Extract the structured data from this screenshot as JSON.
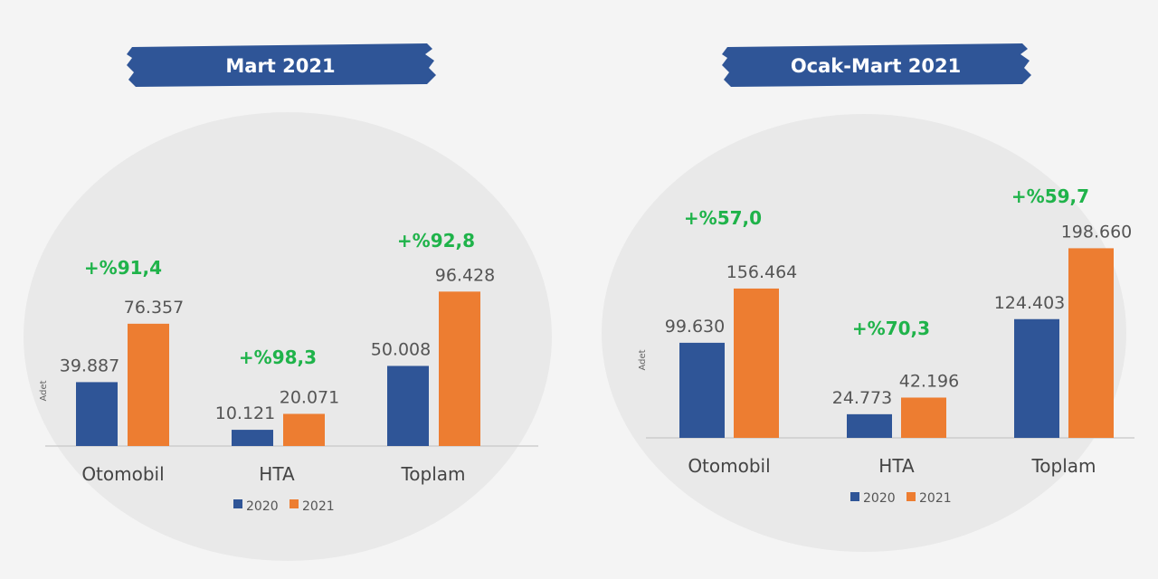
{
  "colors": {
    "s2020": "#2f5597",
    "s2021": "#ed7d31",
    "banner": "#2f5597",
    "growth": "#1fb34a",
    "panel": "#e9e9e9"
  },
  "chart_data": [
    {
      "type": "bar",
      "title": "Mart 2021",
      "ylabel": "Adet",
      "categories": [
        "Otomobil",
        "HTA",
        "Toplam"
      ],
      "series": [
        {
          "name": "2020",
          "values": [
            39887,
            10121,
            50008
          ],
          "labels": [
            "39.887",
            "10.121",
            "50.008"
          ]
        },
        {
          "name": "2021",
          "values": [
            76357,
            20071,
            96428
          ],
          "labels": [
            "76.357",
            "20.071",
            "96.428"
          ]
        }
      ],
      "annotations": [
        "+%91,4",
        "+%98,3",
        "+%92,8"
      ],
      "legend": [
        "2020",
        "2021"
      ],
      "ylim": [
        0,
        120000
      ]
    },
    {
      "type": "bar",
      "title": "Ocak-Mart 2021",
      "ylabel": "Adet",
      "categories": [
        "Otomobil",
        "HTA",
        "Toplam"
      ],
      "series": [
        {
          "name": "2020",
          "values": [
            99630,
            24773,
            124403
          ],
          "labels": [
            "99.630",
            "24.773",
            "124.403"
          ]
        },
        {
          "name": "2021",
          "values": [
            156464,
            42196,
            198660
          ],
          "labels": [
            "156.464",
            "42.196",
            "198.660"
          ]
        }
      ],
      "annotations": [
        "+%57,0",
        "+%70,3",
        "+%59,7"
      ],
      "legend": [
        "2020",
        "2021"
      ],
      "ylim": [
        0,
        250000
      ]
    }
  ]
}
